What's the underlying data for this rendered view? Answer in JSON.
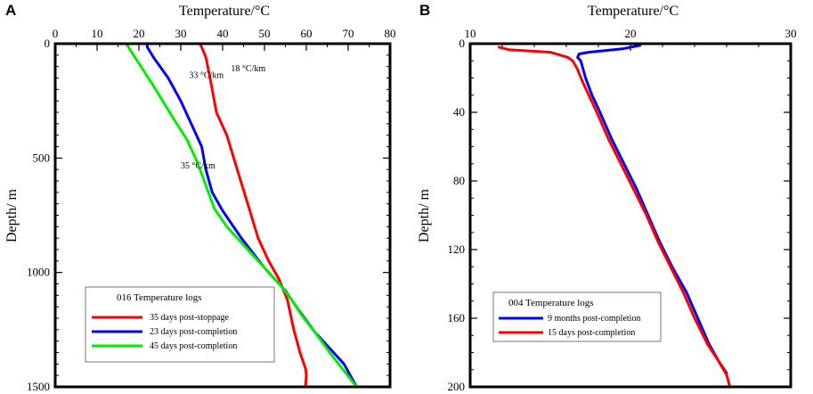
{
  "chart_data": [
    {
      "id": "A",
      "type": "line",
      "panel_label": "A",
      "xlabel": "Temperature/°C",
      "ylabel": "Depth/ m",
      "xlim": [
        0,
        80
      ],
      "ylim": [
        0,
        1500
      ],
      "x_ticks": [
        0,
        10,
        20,
        30,
        40,
        50,
        60,
        70,
        80
      ],
      "y_ticks": [
        0,
        500,
        1000,
        1500
      ],
      "legend_title": "016 Temperature logs",
      "legend_position": "bottom-center",
      "annotations": [
        {
          "text": "18 °C/km",
          "x": 42,
          "depth": 120
        },
        {
          "text": "33 °C/km",
          "x": 32,
          "depth": 150
        },
        {
          "text": "35 °C/km",
          "x": 30,
          "depth": 545
        }
      ],
      "series": [
        {
          "name": "35 days post-stoppage",
          "color": "#ff0000",
          "points": [
            [
              34.5,
              0
            ],
            [
              35,
              15
            ],
            [
              36,
              60
            ],
            [
              37,
              150
            ],
            [
              38.5,
              300
            ],
            [
              41,
              400
            ],
            [
              43.5,
              550
            ],
            [
              46,
              700
            ],
            [
              48.5,
              850
            ],
            [
              51,
              950
            ],
            [
              53.5,
              1030
            ],
            [
              55.5,
              1120
            ],
            [
              57,
              1250
            ],
            [
              58.5,
              1350
            ],
            [
              59.8,
              1420
            ],
            [
              60,
              1450
            ],
            [
              59.8,
              1500
            ]
          ]
        },
        {
          "name": "23 days post-completion",
          "color": "#0000ff",
          "points": [
            [
              22,
              0
            ],
            [
              22,
              15
            ],
            [
              23.5,
              60
            ],
            [
              27,
              150
            ],
            [
              30,
              250
            ],
            [
              33,
              370
            ],
            [
              35,
              450
            ],
            [
              36,
              550
            ],
            [
              37.5,
              650
            ],
            [
              40,
              730
            ],
            [
              44.5,
              850
            ],
            [
              50,
              980
            ],
            [
              55,
              1080
            ],
            [
              58,
              1160
            ],
            [
              62,
              1260
            ],
            [
              66,
              1340
            ],
            [
              69,
              1400
            ],
            [
              72,
              1500
            ]
          ]
        },
        {
          "name": "45 days post-completion",
          "color": "#00ee00",
          "points": [
            [
              13.5,
              0
            ],
            [
              17,
              0
            ],
            [
              18,
              30
            ],
            [
              20.5,
              100
            ],
            [
              24,
              200
            ],
            [
              28,
              320
            ],
            [
              31.5,
              420
            ],
            [
              34,
              520
            ],
            [
              36,
              620
            ],
            [
              38,
              720
            ],
            [
              41,
              800
            ],
            [
              45,
              880
            ],
            [
              50,
              980
            ],
            [
              54,
              1060
            ],
            [
              56.5,
              1120
            ],
            [
              59,
              1190
            ],
            [
              62,
              1260
            ],
            [
              66,
              1360
            ],
            [
              69,
              1430
            ],
            [
              72,
              1500
            ]
          ]
        }
      ]
    },
    {
      "id": "B",
      "type": "line",
      "panel_label": "B",
      "xlabel": "Temperature/°C",
      "ylabel": "Depth/ m",
      "xlim": [
        10,
        30
      ],
      "ylim": [
        0,
        200
      ],
      "x_ticks": [
        10,
        20,
        30
      ],
      "y_ticks": [
        0,
        40,
        80,
        120,
        160,
        200
      ],
      "legend_title": "004 Temperature logs",
      "legend_position": "bottom-center",
      "series": [
        {
          "name": "9 months post-completion",
          "color": "#0000ff",
          "points": [
            [
              20.6,
              0
            ],
            [
              20.6,
              1
            ],
            [
              19.5,
              3
            ],
            [
              17.4,
              5
            ],
            [
              16.8,
              6
            ],
            [
              16.7,
              8
            ],
            [
              16.9,
              10
            ],
            [
              17.2,
              20
            ],
            [
              17.6,
              30
            ],
            [
              18.1,
              40
            ],
            [
              18.8,
              55
            ],
            [
              19.6,
              70
            ],
            [
              20.4,
              85
            ],
            [
              21.1,
              100
            ],
            [
              21.8,
              115
            ],
            [
              22.6,
              130
            ],
            [
              23.5,
              145
            ],
            [
              24.2,
              160
            ],
            [
              24.9,
              175
            ],
            [
              25.5,
              185
            ],
            [
              26,
              192
            ]
          ]
        },
        {
          "name": "15 days post-completion",
          "color": "#ff0000",
          "points": [
            [
              11.8,
              2
            ],
            [
              12,
              2.5
            ],
            [
              12.4,
              3.5
            ],
            [
              15,
              5
            ],
            [
              16.1,
              8
            ],
            [
              16.4,
              10
            ],
            [
              16.7,
              15
            ],
            [
              17,
              22
            ],
            [
              17.4,
              30
            ],
            [
              17.9,
              40
            ],
            [
              18.6,
              55
            ],
            [
              19.4,
              70
            ],
            [
              20.2,
              85
            ],
            [
              21,
              100
            ],
            [
              21.7,
              115
            ],
            [
              22.5,
              130
            ],
            [
              23.3,
              145
            ],
            [
              24,
              160
            ],
            [
              24.8,
              175
            ],
            [
              25.5,
              185
            ],
            [
              26,
              193
            ],
            [
              26.2,
              200
            ]
          ]
        }
      ]
    }
  ]
}
